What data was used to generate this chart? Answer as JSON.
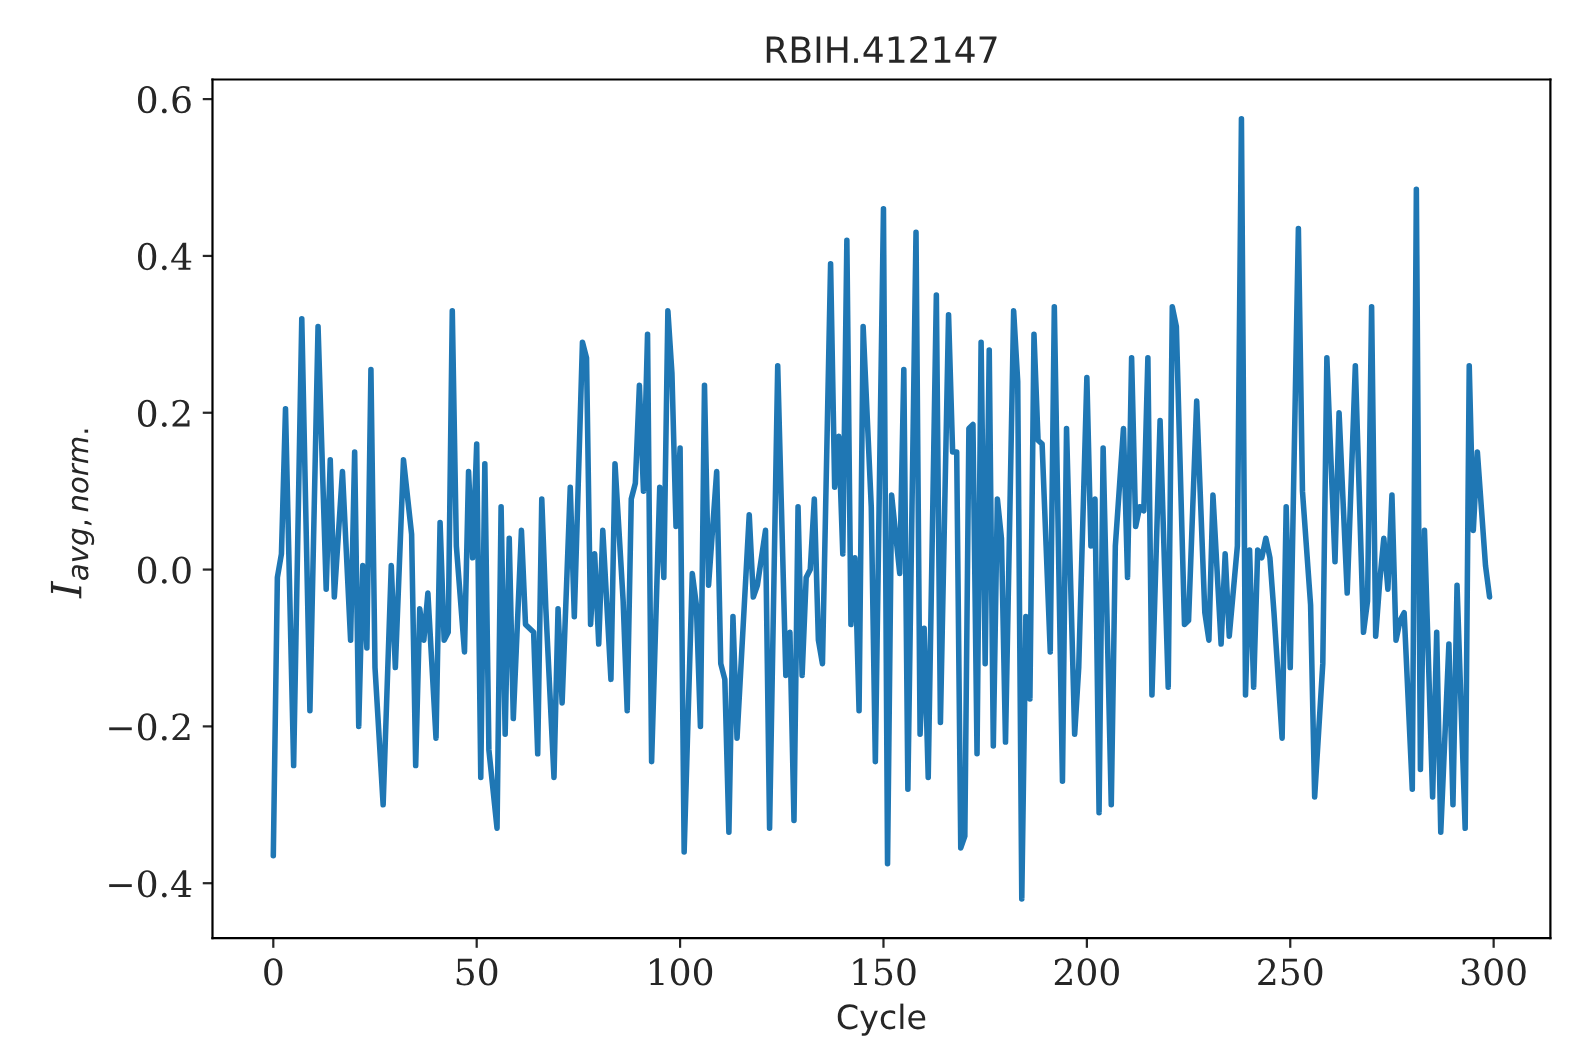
{
  "chart_data": {
    "type": "line",
    "title": "RBIH.412147",
    "xlabel": "Cycle",
    "ylabel": "I$_{avg,norm.}$",
    "x": [
      0,
      1,
      2,
      3,
      5,
      7,
      9,
      11,
      13,
      14,
      15,
      17,
      19,
      20,
      21,
      22,
      23,
      24,
      25,
      27,
      29,
      30,
      32,
      34,
      35,
      36,
      37,
      38,
      40,
      41,
      42,
      43,
      44,
      45,
      47,
      48,
      49,
      50,
      51,
      52,
      53,
      55,
      56,
      57,
      58,
      59,
      61,
      62,
      64,
      65,
      66,
      67,
      69,
      70,
      71,
      73,
      74,
      76,
      77,
      78,
      79,
      80,
      81,
      83,
      84,
      86,
      87,
      88,
      89,
      90,
      91,
      92,
      93,
      95,
      96,
      97,
      98,
      99,
      100,
      101,
      103,
      104,
      105,
      106,
      107,
      109,
      110,
      111,
      112,
      113,
      114,
      117,
      118,
      119,
      121,
      122,
      124,
      126,
      127,
      128,
      129,
      130,
      131,
      132,
      133,
      134,
      135,
      137,
      138,
      139,
      140,
      141,
      142,
      143,
      144,
      145,
      147,
      148,
      150,
      151,
      152,
      154,
      155,
      156,
      158,
      159,
      160,
      161,
      163,
      164,
      166,
      167,
      168,
      169,
      170,
      171,
      172,
      173,
      174,
      175,
      176,
      177,
      178,
      179,
      180,
      182,
      183,
      184,
      185,
      186,
      187,
      188,
      189,
      191,
      192,
      194,
      195,
      197,
      198,
      200,
      201,
      202,
      203,
      204,
      206,
      207,
      209,
      210,
      211,
      212,
      213,
      214,
      215,
      216,
      218,
      220,
      221,
      222,
      224,
      225,
      227,
      229,
      230,
      231,
      233,
      234,
      235,
      237,
      238,
      239,
      240,
      241,
      242,
      243,
      244,
      245,
      246,
      248,
      249,
      250,
      252,
      253,
      255,
      256,
      258,
      259,
      261,
      262,
      264,
      266,
      268,
      269,
      270,
      271,
      272,
      273,
      274,
      275,
      276,
      277,
      278,
      280,
      281,
      282,
      283,
      285,
      286,
      287,
      289,
      290,
      291,
      293,
      294,
      295,
      296,
      298,
      299
    ],
    "series": [
      {
        "color": "#1f77b4",
        "values": [
          -0.365,
          -0.01,
          0.02,
          0.205,
          -0.25,
          0.32,
          -0.18,
          0.31,
          -0.025,
          0.14,
          -0.035,
          0.125,
          -0.09,
          0.15,
          -0.2,
          0.005,
          -0.1,
          0.255,
          -0.125,
          -0.3,
          0.005,
          -0.125,
          0.14,
          0.045,
          -0.25,
          -0.05,
          -0.09,
          -0.03,
          -0.215,
          0.06,
          -0.09,
          -0.08,
          0.33,
          0.03,
          -0.105,
          0.125,
          0.015,
          0.16,
          -0.265,
          0.135,
          -0.23,
          -0.33,
          0.08,
          -0.21,
          0.04,
          -0.19,
          0.05,
          -0.07,
          -0.08,
          -0.235,
          0.09,
          -0.05,
          -0.265,
          -0.05,
          -0.17,
          0.105,
          -0.06,
          0.29,
          0.27,
          -0.07,
          0.02,
          -0.095,
          0.05,
          -0.14,
          0.135,
          -0.04,
          -0.18,
          0.09,
          0.11,
          0.235,
          0.1,
          0.3,
          -0.245,
          0.105,
          -0.01,
          0.33,
          0.25,
          0.055,
          0.155,
          -0.36,
          -0.005,
          -0.045,
          -0.2,
          0.235,
          -0.02,
          0.125,
          -0.12,
          -0.14,
          -0.335,
          -0.06,
          -0.215,
          0.07,
          -0.035,
          -0.02,
          0.05,
          -0.33,
          0.26,
          -0.135,
          -0.08,
          -0.32,
          0.08,
          -0.135,
          -0.01,
          0.0,
          0.09,
          -0.09,
          -0.12,
          0.39,
          0.105,
          0.17,
          0.02,
          0.42,
          -0.07,
          0.015,
          -0.18,
          0.31,
          0.08,
          -0.245,
          0.46,
          -0.375,
          0.095,
          -0.005,
          0.255,
          -0.28,
          0.43,
          -0.21,
          -0.075,
          -0.265,
          0.35,
          -0.195,
          0.325,
          0.15,
          0.15,
          -0.355,
          -0.34,
          0.18,
          0.185,
          -0.235,
          0.29,
          -0.12,
          0.28,
          -0.225,
          0.09,
          0.04,
          -0.22,
          0.33,
          0.24,
          -0.42,
          -0.06,
          -0.165,
          0.3,
          0.165,
          0.16,
          -0.105,
          0.335,
          -0.27,
          0.18,
          -0.21,
          -0.125,
          0.245,
          0.03,
          0.09,
          -0.31,
          0.155,
          -0.3,
          0.03,
          0.18,
          -0.01,
          0.27,
          0.055,
          0.08,
          0.075,
          0.27,
          -0.16,
          0.19,
          -0.15,
          0.335,
          0.31,
          -0.07,
          -0.065,
          0.215,
          -0.055,
          -0.09,
          0.095,
          -0.095,
          0.02,
          -0.085,
          0.03,
          0.575,
          -0.16,
          0.025,
          -0.15,
          0.025,
          0.015,
          0.04,
          0.015,
          -0.055,
          -0.215,
          0.08,
          -0.125,
          0.435,
          0.1,
          -0.045,
          -0.29,
          -0.12,
          0.27,
          0.01,
          0.2,
          -0.03,
          0.26,
          -0.08,
          -0.04,
          0.335,
          -0.085,
          -0.015,
          0.04,
          -0.025,
          0.095,
          -0.09,
          -0.065,
          -0.055,
          -0.28,
          0.485,
          -0.255,
          0.05,
          -0.29,
          -0.08,
          -0.335,
          -0.095,
          -0.3,
          -0.02,
          -0.33,
          0.26,
          0.05,
          0.15,
          0.005,
          -0.035
        ]
      }
    ],
    "xlim": [
      -14.95,
      313.95
    ],
    "ylim": [
      -0.47,
      0.625
    ],
    "xticks": [
      0,
      50,
      100,
      150,
      200,
      250,
      300
    ],
    "yticks": [
      {
        "value": -0.4,
        "label": "−0.4"
      },
      {
        "value": -0.2,
        "label": "−0.2"
      },
      {
        "value": 0.0,
        "label": "0.0"
      },
      {
        "value": 0.2,
        "label": "0.2"
      },
      {
        "value": 0.4,
        "label": "0.4"
      },
      {
        "value": 0.6,
        "label": "0.6"
      }
    ],
    "line_style": "solid",
    "marker": "none",
    "grid": false,
    "legend": false
  }
}
